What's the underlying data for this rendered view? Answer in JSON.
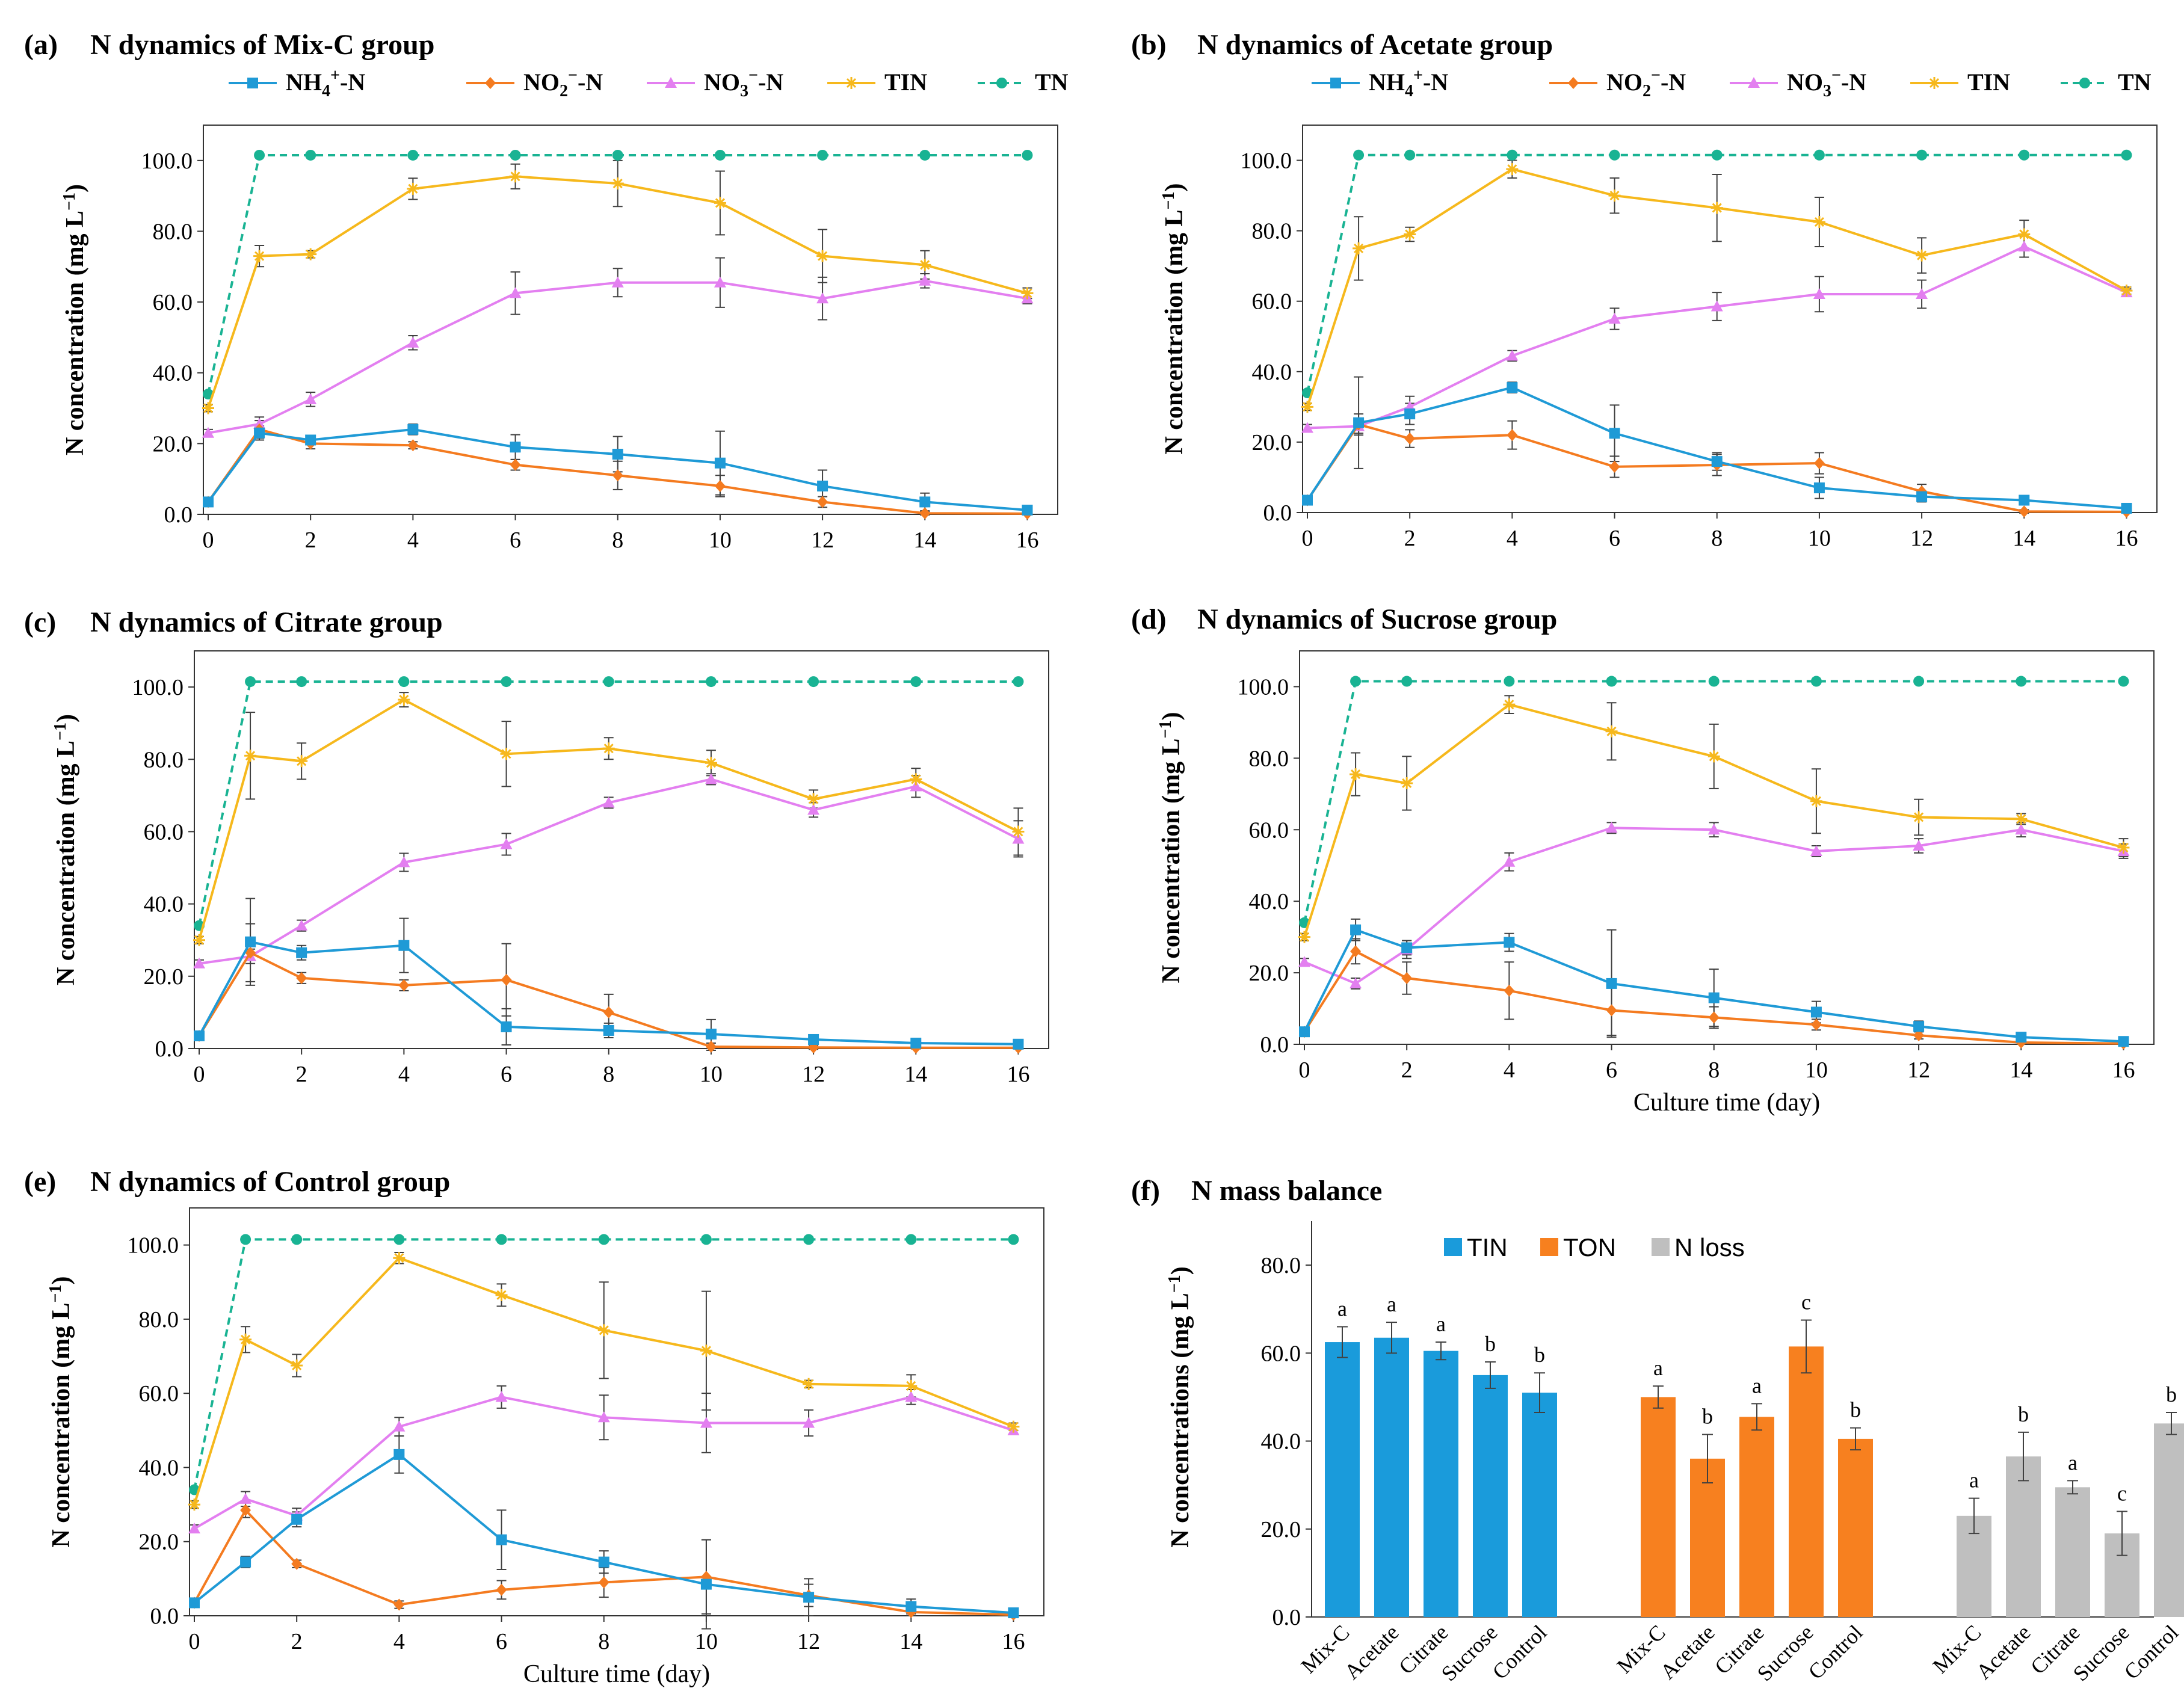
{
  "figure": {
    "colors": {
      "NH4": "#1f9ad6",
      "NO2": "#f47b20",
      "NO3": "#e37ff0",
      "TIN": "#f6b81c",
      "TN": "#19b393",
      "bar_TIN": "#1a9bdb",
      "bar_TON": "#f7801f",
      "bar_Nloss": "#bfbfbf",
      "error": "#404040"
    },
    "legend_line": {
      "NH4": {
        "base": "NH",
        "sub": "4",
        "sup": "+",
        "tail": "-N"
      },
      "NO2": {
        "base": "NO",
        "sub": "2",
        "sup": "−",
        "tail": "-N"
      },
      "NO3": {
        "base": "NO",
        "sub": "3",
        "sup": "−",
        "tail": "-N"
      },
      "TIN": "TIN",
      "TN": "TN"
    }
  },
  "chart_data": [
    {
      "type": "line",
      "panel": "a",
      "panel_label": "(a)",
      "title": "N dynamics of Mix-C group",
      "ylabel": "N concentration (mg L⁻¹)",
      "xlabel": "",
      "x": [
        0,
        1,
        2,
        4,
        6,
        8,
        10,
        12,
        14,
        16
      ],
      "ylim": [
        0,
        110
      ],
      "yticks": [
        0,
        20,
        40,
        60,
        80,
        100
      ],
      "ytick_labels": [
        "0.0",
        "20.0",
        "40.0",
        "60.0",
        "80.0",
        "100.0"
      ],
      "xticks": [
        0,
        2,
        4,
        6,
        8,
        10,
        12,
        14,
        16
      ],
      "xtick_labels": [
        "0",
        "2",
        "4",
        "6",
        "8",
        "10",
        "12",
        "14",
        "16"
      ],
      "legend": true,
      "series": [
        {
          "name": "NH4+-N",
          "key": "NH4",
          "marker": "square",
          "values": [
            3.5,
            23,
            21,
            24,
            19,
            17,
            14.5,
            8,
            3.5,
            1.2
          ],
          "errors": [
            0.5,
            2,
            1.2,
            1.5,
            3.5,
            5,
            9,
            4.5,
            2.5,
            0.5
          ]
        },
        {
          "name": "NO2−-N",
          "key": "NO2",
          "marker": "diamond",
          "values": [
            3.5,
            24,
            20,
            19.5,
            14,
            11,
            8,
            3.5,
            0.3,
            0.2
          ],
          "errors": [
            0.5,
            2.5,
            1.5,
            1,
            1.5,
            4,
            3,
            1.5,
            0.5,
            0.3
          ]
        },
        {
          "name": "NO3−-N",
          "key": "NO3",
          "marker": "triangle",
          "values": [
            23,
            25.5,
            32.5,
            48.5,
            62.5,
            65.5,
            65.5,
            61,
            66,
            61
          ],
          "errors": [
            1,
            2,
            2,
            2,
            6,
            4,
            7,
            6,
            2,
            1.5
          ]
        },
        {
          "name": "TIN",
          "key": "TIN",
          "marker": "asterisk",
          "values": [
            30,
            73,
            73.5,
            92,
            95.5,
            93.5,
            88,
            73,
            70.5,
            62.5
          ],
          "errors": [
            1,
            3,
            1,
            3,
            3.5,
            6.5,
            9,
            7.5,
            4,
            1.5
          ]
        },
        {
          "name": "TN",
          "key": "TN",
          "marker": "circle",
          "dashed": true,
          "values": [
            34,
            101.5,
            101.5,
            101.5,
            101.5,
            101.5,
            101.5,
            101.5,
            101.5,
            101.5
          ]
        }
      ]
    },
    {
      "type": "line",
      "panel": "b",
      "panel_label": "(b)",
      "title": "N dynamics of Acetate group",
      "ylabel": "N concentration (mg L⁻¹)",
      "xlabel": "",
      "x": [
        0,
        1,
        2,
        4,
        6,
        8,
        10,
        12,
        14,
        16
      ],
      "ylim": [
        0,
        110
      ],
      "yticks": [
        0,
        20,
        40,
        60,
        80,
        100
      ],
      "ytick_labels": [
        "0.0",
        "20.0",
        "40.0",
        "60.0",
        "80.0",
        "100.0"
      ],
      "xticks": [
        0,
        2,
        4,
        6,
        8,
        10,
        12,
        14,
        16
      ],
      "xtick_labels": [
        "0",
        "2",
        "4",
        "6",
        "8",
        "10",
        "12",
        "14",
        "16"
      ],
      "legend": true,
      "series": [
        {
          "name": "NH4+-N",
          "key": "NH4",
          "marker": "square",
          "values": [
            3.5,
            25.5,
            28,
            35.5,
            22.5,
            14.5,
            7,
            4.5,
            3.5,
            1.2
          ],
          "errors": [
            0.5,
            13,
            3,
            1.5,
            8,
            2.5,
            3,
            1.5,
            1,
            0.5
          ]
        },
        {
          "name": "NO2−-N",
          "key": "NO2",
          "marker": "diamond",
          "values": [
            3.5,
            25,
            21,
            22,
            13,
            13.5,
            14,
            6,
            0.3,
            0.2
          ],
          "errors": [
            0.5,
            3,
            2.5,
            4,
            3,
            3,
            3,
            2,
            0.5,
            0.3
          ]
        },
        {
          "name": "NO3−-N",
          "key": "NO3",
          "marker": "triangle",
          "values": [
            24,
            24.5,
            30,
            44.5,
            55,
            58.5,
            62,
            62,
            75.5,
            62.5
          ],
          "errors": [
            1,
            2,
            3,
            1.5,
            3,
            4,
            5,
            4,
            3,
            1
          ]
        },
        {
          "name": "TIN",
          "key": "TIN",
          "marker": "asterisk",
          "values": [
            30,
            75,
            79,
            97.5,
            90,
            86.5,
            82.5,
            73,
            79,
            63
          ],
          "errors": [
            1,
            9,
            2,
            2.5,
            5,
            9.5,
            7,
            5,
            4,
            1
          ]
        },
        {
          "name": "TN",
          "key": "TN",
          "marker": "circle",
          "dashed": true,
          "values": [
            34,
            101.5,
            101.5,
            101.5,
            101.5,
            101.5,
            101.5,
            101.5,
            101.5,
            101.5
          ]
        }
      ]
    },
    {
      "type": "line",
      "panel": "c",
      "panel_label": "(c)",
      "title": "N dynamics of Citrate group",
      "ylabel": "N concentration (mg L⁻¹)",
      "xlabel": "",
      "x": [
        0,
        1,
        2,
        4,
        6,
        8,
        10,
        12,
        14,
        16
      ],
      "ylim": [
        0,
        110
      ],
      "yticks": [
        0,
        20,
        40,
        60,
        80,
        100
      ],
      "ytick_labels": [
        "0.0",
        "20.0",
        "40.0",
        "60.0",
        "80.0",
        "100.0"
      ],
      "xticks": [
        0,
        2,
        4,
        6,
        8,
        10,
        12,
        14,
        16
      ],
      "xtick_labels": [
        "0",
        "2",
        "4",
        "6",
        "8",
        "10",
        "12",
        "14",
        "16"
      ],
      "legend": false,
      "series": [
        {
          "name": "NH4+-N",
          "key": "NH4",
          "marker": "square",
          "values": [
            3.5,
            29.5,
            26.5,
            28.5,
            6,
            5,
            4,
            2.5,
            1.5,
            1.2
          ],
          "errors": [
            0.5,
            12,
            2,
            7.5,
            5,
            2,
            4,
            1,
            0.5,
            0.5
          ]
        },
        {
          "name": "NO2−-N",
          "key": "NO2",
          "marker": "diamond",
          "values": [
            3.5,
            26.5,
            19.5,
            17.5,
            19,
            10,
            0.5,
            0.3,
            0.2,
            0.2
          ],
          "errors": [
            0.5,
            8,
            1.5,
            1.5,
            10,
            5,
            1,
            0.5,
            0.3,
            0.3
          ]
        },
        {
          "name": "NO3−-N",
          "key": "NO3",
          "marker": "triangle",
          "values": [
            23.5,
            25.5,
            34,
            51.5,
            56.5,
            68,
            74.5,
            66,
            72.5,
            58
          ],
          "errors": [
            1,
            2,
            1.5,
            2.5,
            3,
            1.5,
            1.5,
            2,
            3,
            5
          ]
        },
        {
          "name": "TIN",
          "key": "TIN",
          "marker": "asterisk",
          "values": [
            30,
            81,
            79.5,
            96.5,
            81.5,
            83,
            79,
            69,
            74.5,
            60
          ],
          "errors": [
            1,
            12,
            5,
            2,
            9,
            3,
            3.5,
            2.5,
            3,
            6.5
          ]
        },
        {
          "name": "TN",
          "key": "TN",
          "marker": "circle",
          "dashed": true,
          "values": [
            34,
            101.5,
            101.5,
            101.5,
            101.5,
            101.5,
            101.5,
            101.5,
            101.5,
            101.5
          ]
        }
      ]
    },
    {
      "type": "line",
      "panel": "d",
      "panel_label": "(d)",
      "title": "N dynamics of Sucrose group",
      "ylabel": "N concentration (mg L⁻¹)",
      "xlabel": "Culture time (day)",
      "x": [
        0,
        1,
        2,
        4,
        6,
        8,
        10,
        12,
        14,
        16
      ],
      "ylim": [
        0,
        110
      ],
      "yticks": [
        0,
        20,
        40,
        60,
        80,
        100
      ],
      "ytick_labels": [
        "0.0",
        "20.0",
        "40.0",
        "60.0",
        "80.0",
        "100.0"
      ],
      "xticks": [
        0,
        2,
        4,
        6,
        8,
        10,
        12,
        14,
        16
      ],
      "xtick_labels": [
        "0",
        "2",
        "4",
        "6",
        "8",
        "10",
        "12",
        "14",
        "16"
      ],
      "legend": false,
      "series": [
        {
          "name": "NH4+-N",
          "key": "NH4",
          "marker": "square",
          "values": [
            3.5,
            32,
            27,
            28.5,
            17,
            13,
            9,
            5,
            2,
            0.8
          ],
          "errors": [
            0.5,
            3,
            2,
            2.5,
            15,
            8,
            3,
            1.5,
            1,
            0.5
          ]
        },
        {
          "name": "NO2−-N",
          "key": "NO2",
          "marker": "diamond",
          "values": [
            3.5,
            26,
            18.5,
            15,
            9.5,
            7.5,
            5.5,
            2.5,
            0.5,
            0.2
          ],
          "errors": [
            0.5,
            3.5,
            4.5,
            8,
            7,
            3,
            1.5,
            1,
            0.5,
            0.3
          ]
        },
        {
          "name": "NO3−-N",
          "key": "NO3",
          "marker": "triangle",
          "values": [
            23,
            17,
            26.5,
            51,
            60.5,
            60,
            54,
            55.5,
            60,
            54
          ],
          "errors": [
            1,
            1.5,
            2.5,
            2.5,
            1.5,
            2,
            1.5,
            2,
            2,
            2
          ]
        },
        {
          "name": "TIN",
          "key": "TIN",
          "marker": "asterisk",
          "values": [
            30,
            75.5,
            73,
            95,
            87.5,
            80.5,
            68,
            63.5,
            63,
            55
          ],
          "errors": [
            1,
            6,
            7.5,
            2.5,
            8,
            9,
            9,
            5,
            1.5,
            2.5
          ]
        },
        {
          "name": "TN",
          "key": "TN",
          "marker": "circle",
          "dashed": true,
          "values": [
            34,
            101.5,
            101.5,
            101.5,
            101.5,
            101.5,
            101.5,
            101.5,
            101.5,
            101.5
          ]
        }
      ]
    },
    {
      "type": "line",
      "panel": "e",
      "panel_label": "(e)",
      "title": "N dynamics of Control group",
      "ylabel": "N concentration (mg L⁻¹)",
      "xlabel": "Culture time (day)",
      "x": [
        0,
        1,
        2,
        4,
        6,
        8,
        10,
        12,
        14,
        16
      ],
      "ylim": [
        0,
        110
      ],
      "yticks": [
        0,
        20,
        40,
        60,
        80,
        100
      ],
      "ytick_labels": [
        "0.0",
        "20.0",
        "40.0",
        "60.0",
        "80.0",
        "100.0"
      ],
      "xticks": [
        0,
        2,
        4,
        6,
        8,
        10,
        12,
        14,
        16
      ],
      "xtick_labels": [
        "0",
        "2",
        "4",
        "6",
        "8",
        "10",
        "12",
        "14",
        "16"
      ],
      "legend": false,
      "series": [
        {
          "name": "NH4+-N",
          "key": "NH4",
          "marker": "square",
          "values": [
            3.5,
            14.5,
            26,
            43.5,
            20.5,
            14.5,
            8.5,
            5,
            2.5,
            0.8
          ],
          "errors": [
            0.5,
            1.5,
            2,
            5,
            8,
            3,
            12,
            5,
            2,
            0.5
          ]
        },
        {
          "name": "NO2−-N",
          "key": "NO2",
          "marker": "diamond",
          "values": [
            3.5,
            28.5,
            14,
            3,
            7,
            9,
            10.5,
            5.5,
            1,
            0.3
          ],
          "errors": [
            0.5,
            2,
            1,
            1,
            2.5,
            4,
            10,
            3,
            1,
            0.3
          ]
        },
        {
          "name": "NO3−-N",
          "key": "NO3",
          "marker": "triangle",
          "values": [
            23.5,
            31.5,
            27,
            51,
            59,
            53.5,
            52,
            52,
            59,
            50
          ],
          "errors": [
            1,
            2,
            2,
            2.5,
            3,
            6,
            8,
            3.5,
            2,
            1
          ]
        },
        {
          "name": "TIN",
          "key": "TIN",
          "marker": "asterisk",
          "values": [
            30,
            74.5,
            67.5,
            96.5,
            86.5,
            77,
            71.5,
            62.5,
            62,
            51
          ],
          "errors": [
            1,
            3.5,
            3,
            1.5,
            3,
            13,
            16,
            1,
            3,
            1
          ]
        },
        {
          "name": "TN",
          "key": "TN",
          "marker": "circle",
          "dashed": true,
          "values": [
            34,
            101.5,
            101.5,
            101.5,
            101.5,
            101.5,
            101.5,
            101.5,
            101.5,
            101.5
          ]
        }
      ]
    },
    {
      "type": "bar",
      "panel": "f",
      "panel_label": "(f)",
      "title": "N mass balance",
      "ylabel": "N concentrations (mg L⁻¹)",
      "ylim": [
        0,
        90
      ],
      "yticks": [
        0,
        20,
        40,
        60,
        80
      ],
      "ytick_labels": [
        "0.0",
        "20.0",
        "40.0",
        "60.0",
        "80.0"
      ],
      "categories": [
        "Mix-C",
        "Acetate",
        "Citrate",
        "Sucrose",
        "Control"
      ],
      "series": [
        {
          "name": "TIN",
          "key": "bar_TIN",
          "values": [
            62.5,
            63.5,
            60.5,
            55,
            51
          ],
          "errors": [
            3.5,
            3.5,
            2,
            3,
            4.5
          ],
          "letters": [
            "a",
            "a",
            "a",
            "b",
            "b"
          ]
        },
        {
          "name": "TON",
          "key": "bar_TON",
          "values": [
            50,
            36,
            45.5,
            61.5,
            40.5
          ],
          "errors": [
            2.5,
            5.5,
            3,
            6,
            2.5
          ],
          "letters": [
            "a",
            "b",
            "a",
            "c",
            "b"
          ]
        },
        {
          "name": "N loss",
          "key": "bar_Nloss",
          "values": [
            23,
            36.5,
            29.5,
            19,
            44
          ],
          "errors": [
            4,
            5.5,
            1.5,
            5,
            2.5
          ],
          "letters": [
            "a",
            "b",
            "a",
            "c",
            "b"
          ]
        }
      ]
    }
  ]
}
